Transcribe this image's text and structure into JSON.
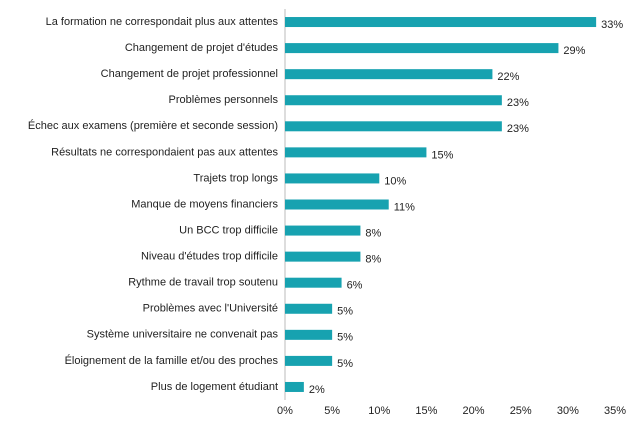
{
  "chart_data": {
    "type": "bar",
    "orientation": "horizontal",
    "categories": [
      "La formation ne correspondait plus aux attentes",
      "Changement de projet d'études",
      "Changement de projet professionnel",
      "Problèmes personnels",
      "Échec aux examens (première et seconde session)",
      "Résultats ne correspondaient pas aux attentes",
      "Trajets trop longs",
      "Manque de moyens financiers",
      "Un BCC trop difficile",
      "Niveau d'études trop difficile",
      "Rythme de travail trop soutenu",
      "Problèmes avec l'Université",
      "Système universitaire ne convenait pas",
      "Éloignement de la famille et/ou des proches",
      "Plus de logement étudiant"
    ],
    "values": [
      33,
      29,
      22,
      23,
      23,
      15,
      10,
      11,
      8,
      8,
      6,
      5,
      5,
      5,
      2
    ],
    "value_labels": [
      "33%",
      "29%",
      "22%",
      "23%",
      "23%",
      "15%",
      "10%",
      "11%",
      "8%",
      "8%",
      "6%",
      "5%",
      "5%",
      "5%",
      "2%"
    ],
    "color": "#17a2b0",
    "xlim": [
      0,
      35
    ],
    "xticks": [
      {
        "value": 0,
        "label": "0%"
      },
      {
        "value": 5,
        "label": "5%"
      },
      {
        "value": 10,
        "label": "10%"
      },
      {
        "value": 15,
        "label": "15%"
      },
      {
        "value": 20,
        "label": "20%"
      },
      {
        "value": 25,
        "label": "25%"
      },
      {
        "value": 30,
        "label": "30%"
      },
      {
        "value": 35,
        "label": "35%"
      }
    ],
    "grid": false
  }
}
